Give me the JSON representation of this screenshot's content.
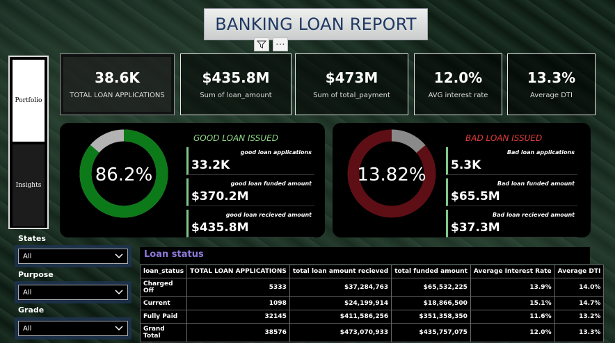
{
  "header": {
    "title": "BANKING LOAN REPORT"
  },
  "nav": {
    "items": [
      {
        "label": "Portfolio"
      },
      {
        "label": "Insights"
      }
    ]
  },
  "kpis": [
    {
      "value": "38.6K",
      "label": "TOTAL LOAN APPLICATIONS"
    },
    {
      "value": "$435.8M",
      "label": "Sum of loan_amount"
    },
    {
      "value": "$473M",
      "label": "Sum of total_payment"
    },
    {
      "value": "12.0%",
      "label": "AVG interest rate"
    },
    {
      "value": "13.3%",
      "label": "Average DTI"
    }
  ],
  "good": {
    "title": "GOOD LOAN ISSUED",
    "percent_text": "86.2%",
    "percent": 86.2,
    "color": "#0d7a1a",
    "metrics": [
      {
        "label": "good loan applications",
        "value": "33.2K"
      },
      {
        "label": "good loan funded amount",
        "value": "$370.2M"
      },
      {
        "label": "good loan recieved amount",
        "value": "$435.8M"
      }
    ]
  },
  "bad": {
    "title": "BAD LOAN ISSUED",
    "percent_text": "13.82%",
    "percent": 13.82,
    "color": "#5e0f15",
    "metrics": [
      {
        "label": "Bad loan applications",
        "value": "5.3K"
      },
      {
        "label": "Bad loan funded amount",
        "value": "$65.5M"
      },
      {
        "label": "Bad loan recieved amount",
        "value": "$37.3M"
      }
    ]
  },
  "filters": [
    {
      "label": "States",
      "value": "All"
    },
    {
      "label": "Purpose",
      "value": "All"
    },
    {
      "label": "Grade",
      "value": "All"
    }
  ],
  "table": {
    "title": "Loan status",
    "columns": [
      "loan_status",
      "TOTAL LOAN APPLICATIONS",
      "total loan amount recieved",
      "total funded amount",
      "Average Interest Rate",
      "Average DTI"
    ],
    "rows": [
      [
        "Charged Off",
        "5333",
        "$37,284,763",
        "$65,532,225",
        "13.9%",
        "14.0%"
      ],
      [
        "Current",
        "1098",
        "$24,199,914",
        "$18,866,500",
        "15.1%",
        "14.7%"
      ],
      [
        "Fully Paid",
        "32145",
        "$411,586,256",
        "$351,358,350",
        "11.6%",
        "13.2%"
      ],
      [
        "Grand Total",
        "38576",
        "$473,070,933",
        "$435,757,075",
        "12.0%",
        "13.3%"
      ]
    ]
  }
}
